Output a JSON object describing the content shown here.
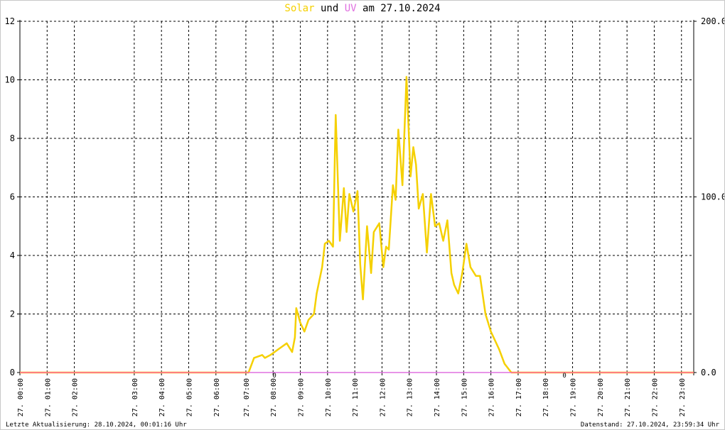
{
  "title": {
    "solar": "Solar",
    "und": "und",
    "uv": "UV",
    "date_text": "am 27.10.2024"
  },
  "footer": {
    "left": "Letzte Aktualisierung: 28.10.2024, 00:01:16 Uhr",
    "right": "Datenstand: 27.10.2024, 23:59:34 Uhr"
  },
  "colors": {
    "solar": "#f5d000",
    "uv": "#e070e0",
    "baseline": "#ff7f7f",
    "grid": "#000000"
  },
  "chart_data": {
    "type": "line",
    "title": "Solar und UV am 27.10.2024",
    "x_unit": "hour of day",
    "xlim": [
      0,
      24.75
    ],
    "left_axis": {
      "ylim": [
        0,
        12
      ],
      "ticks": [
        "0",
        "2",
        "4",
        "6",
        "8",
        "10",
        "12"
      ]
    },
    "right_axis": {
      "ylim": [
        0,
        200
      ],
      "ticks": [
        "0.0",
        "100.0",
        "200.0"
      ]
    },
    "x_tick_labels": [
      "27. 00:00",
      "27. 01:00",
      "27. 02:00",
      "27. 03:00",
      "27. 04:00",
      "27. 05:00",
      "27. 06:00",
      "27. 07:00",
      "27. 08:00",
      "27. 09:00",
      "27. 10:00",
      "27. 11:00",
      "27. 12:00",
      "27. 13:00",
      "27. 14:00",
      "27. 15:00",
      "27. 16:00",
      "27. 17:00",
      "27. 18:00",
      "27. 19:00",
      "27. 20:00",
      "27. 21:00",
      "27. 22:00",
      "27. 23:00"
    ],
    "x_tick_hours": [
      0,
      1,
      2,
      4.2,
      5.2,
      6.2,
      7.2,
      8.3,
      9.3,
      10.3,
      11.3,
      12.3,
      13.3,
      14.3,
      15.3,
      16.3,
      17.3,
      18.3,
      19.3,
      20.3,
      21.3,
      22.3,
      23.3,
      24.3
    ],
    "grid_hours": [
      0,
      1,
      2,
      4.2,
      5.2,
      6.2,
      7.2,
      8.3,
      9.3,
      10.3,
      11.3,
      12.3,
      13.3,
      14.3,
      15.3,
      16.3,
      17.3,
      18.3,
      19.3,
      20.3,
      21.3,
      22.3,
      23.3,
      24.3
    ],
    "left_grid_values": [
      2,
      4,
      6,
      8,
      10,
      12
    ],
    "series": [
      {
        "name": "Solar",
        "axis": "left",
        "x": [
          0,
          8.4,
          8.6,
          8.9,
          9.0,
          9.2,
          9.5,
          9.8,
          10.0,
          10.1,
          10.15,
          10.3,
          10.45,
          10.6,
          10.8,
          10.9,
          11.1,
          11.2,
          11.35,
          11.5,
          11.6,
          11.75,
          11.9,
          12.0,
          12.1,
          12.25,
          12.4,
          12.5,
          12.6,
          12.75,
          12.9,
          13.0,
          13.2,
          13.35,
          13.45,
          13.55,
          13.7,
          13.8,
          13.9,
          14.05,
          14.2,
          14.35,
          14.45,
          14.55,
          14.65,
          14.8,
          14.95,
          15.1,
          15.25,
          15.4,
          15.55,
          15.7,
          15.85,
          15.95,
          16.1,
          16.25,
          16.4,
          16.55,
          16.75,
          16.9,
          17.1,
          17.3,
          17.6,
          17.8,
          18.05,
          24.75
        ],
        "y": [
          0,
          0,
          0.5,
          0.6,
          0.5,
          0.6,
          0.8,
          1.0,
          0.7,
          1.2,
          2.2,
          1.7,
          1.4,
          1.8,
          2.0,
          2.7,
          3.6,
          4.4,
          4.5,
          4.3,
          8.8,
          4.5,
          6.3,
          4.8,
          6.1,
          5.5,
          6.2,
          3.7,
          2.5,
          5.0,
          3.4,
          4.8,
          5.1,
          3.6,
          4.3,
          4.2,
          6.4,
          5.9,
          8.3,
          6.4,
          10.1,
          6.7,
          7.7,
          7.1,
          5.6,
          6.1,
          4.1,
          6.1,
          5.0,
          5.1,
          4.5,
          5.2,
          3.4,
          3.0,
          2.7,
          3.4,
          4.4,
          3.6,
          3.3,
          3.3,
          2.0,
          1.4,
          0.8,
          0.3,
          0,
          0
        ]
      },
      {
        "name": "UV",
        "axis": "right",
        "x": [
          0,
          24.75
        ],
        "y": [
          0,
          0
        ]
      }
    ],
    "point_labels": [
      {
        "text": "0",
        "x": 9.35
      },
      {
        "text": "0",
        "x": 20.0
      }
    ]
  }
}
